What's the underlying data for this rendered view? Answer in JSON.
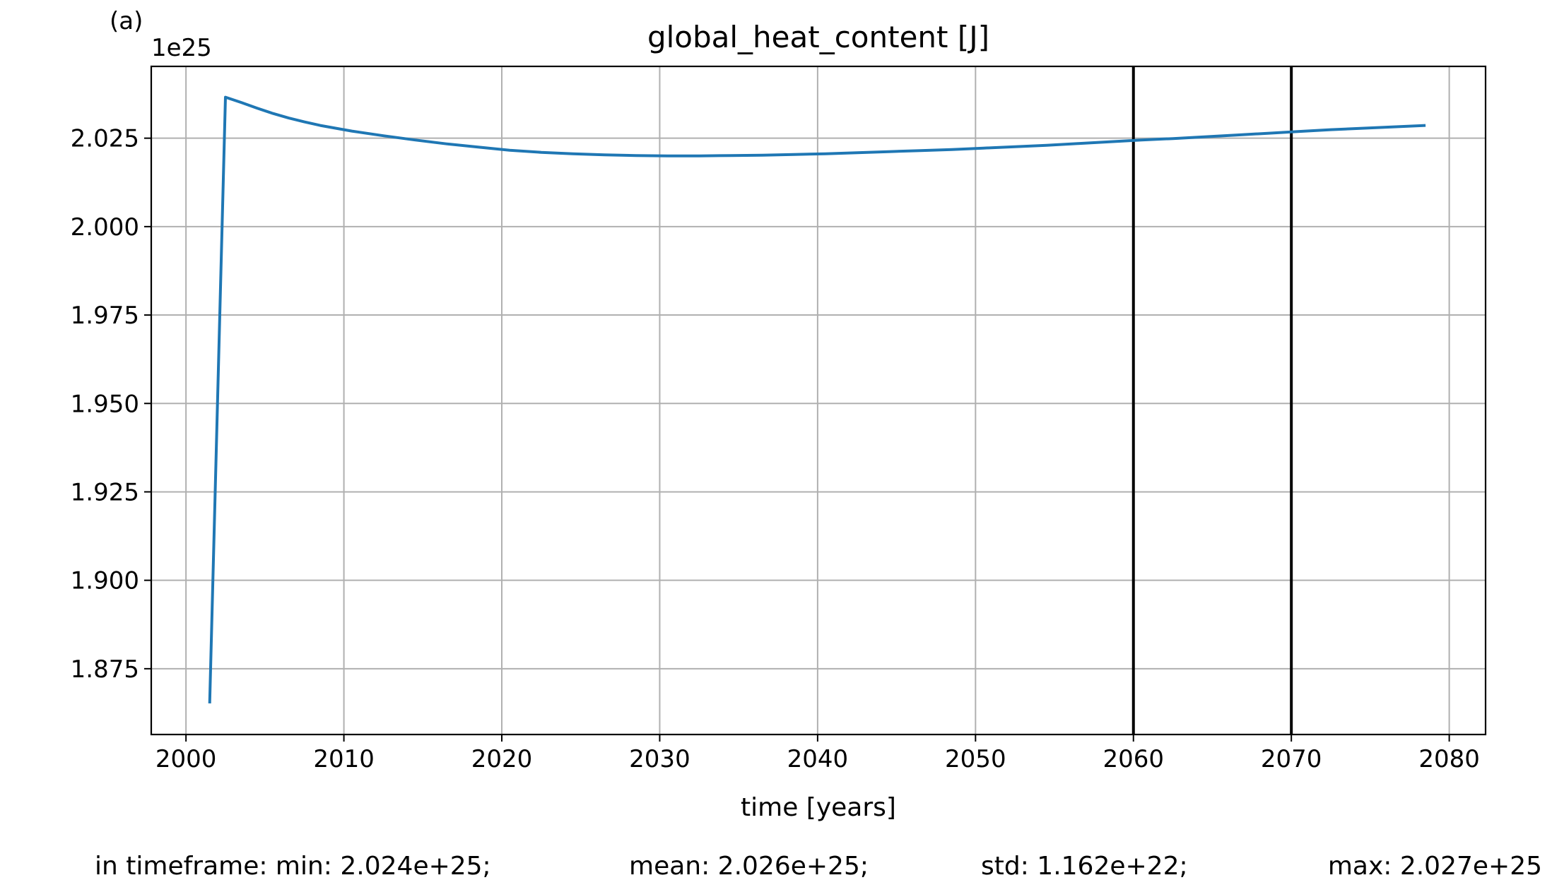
{
  "panel_label": "(a)",
  "chart_data": {
    "type": "line",
    "title": "global_heat_content [J]",
    "xlabel": "time [years]",
    "ylabel": "",
    "offset_text": "1e25",
    "y_scale_factor": 1e+25,
    "xlim": [
      1997.8,
      2082.3
    ],
    "ylim": [
      1.8564,
      2.0453
    ],
    "xticks": [
      2000,
      2010,
      2020,
      2030,
      2040,
      2050,
      2060,
      2070,
      2080
    ],
    "xtick_labels": [
      "2000",
      "2010",
      "2020",
      "2030",
      "2040",
      "2050",
      "2060",
      "2070",
      "2080"
    ],
    "yticks": [
      1.875,
      1.9,
      1.925,
      1.95,
      1.975,
      2.0,
      2.025
    ],
    "ytick_labels": [
      "1.875",
      "1.900",
      "1.925",
      "1.950",
      "1.975",
      "2.000",
      "2.025"
    ],
    "grid": true,
    "vlines": [
      2060,
      2070
    ],
    "series": [
      {
        "color": "#1f77b4",
        "x": [
          2001.5,
          2002.5,
          2003.5,
          2004.5,
          2005.5,
          2006.5,
          2007.5,
          2008.5,
          2009.5,
          2010.5,
          2012.5,
          2014.5,
          2016.5,
          2018.5,
          2020.5,
          2022.5,
          2024.5,
          2026.5,
          2028.5,
          2030.5,
          2032.5,
          2034.5,
          2036.5,
          2038.5,
          2040.5,
          2042.5,
          2044.5,
          2046.5,
          2048.5,
          2050.5,
          2052.5,
          2054.5,
          2056.5,
          2058.5,
          2060.5,
          2062.5,
          2064.5,
          2066.5,
          2068.5,
          2070.5,
          2072.5,
          2074.5,
          2076.5,
          2078.5
        ],
        "values": [
          1.8652,
          2.0366,
          2.0351,
          2.0335,
          2.032,
          2.0307,
          2.0296,
          2.0286,
          2.0278,
          2.027,
          2.0257,
          2.0245,
          2.0234,
          2.0225,
          2.0216,
          2.021,
          2.0206,
          2.0203,
          2.0201,
          2.02,
          2.02,
          2.0201,
          2.0202,
          2.0204,
          2.0206,
          2.0209,
          2.0212,
          2.0215,
          2.0218,
          2.0222,
          2.0226,
          2.023,
          2.0235,
          2.024,
          2.0245,
          2.0249,
          2.0254,
          2.0259,
          2.0264,
          2.0269,
          2.0274,
          2.0278,
          2.0282,
          2.0286
        ]
      }
    ]
  },
  "stats": {
    "min": "in timeframe: min: 2.024e+25;",
    "mean": "mean: 2.026e+25;",
    "std": "std: 1.162e+22;",
    "max": "max: 2.027e+25"
  }
}
